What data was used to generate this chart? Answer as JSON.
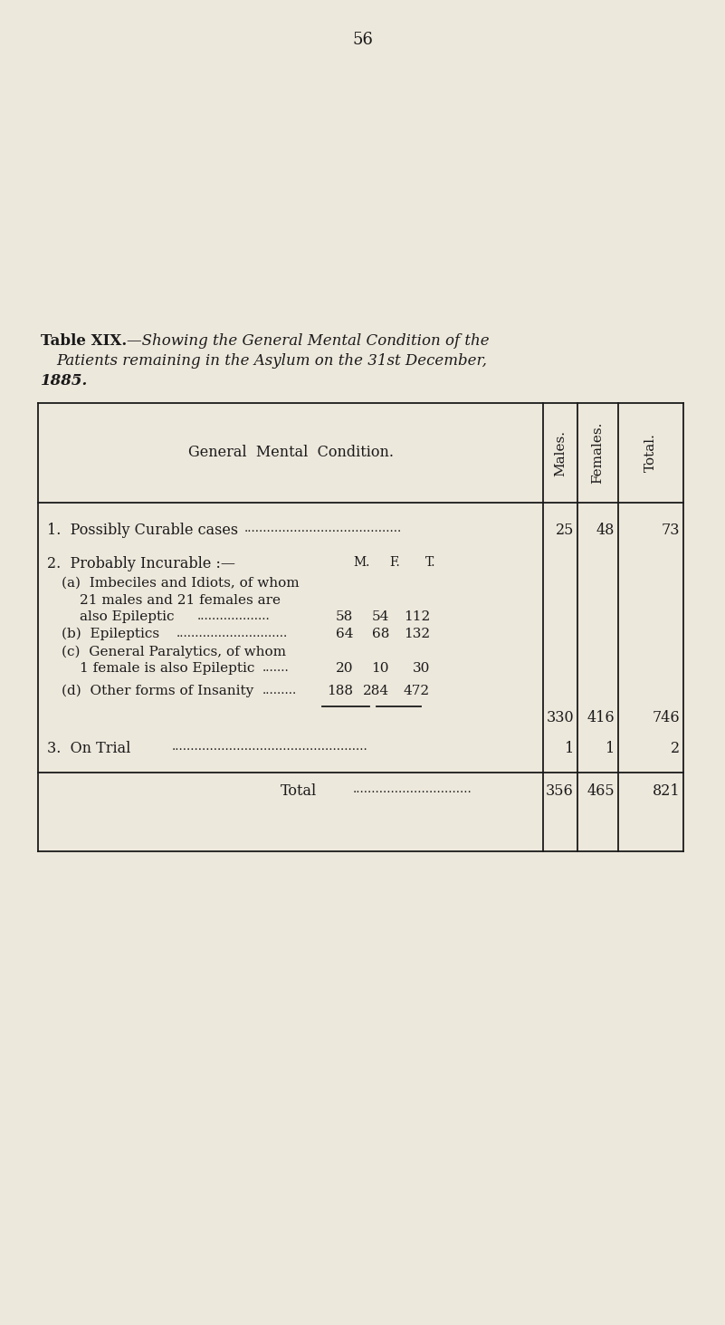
{
  "bg_color": "#ede8dc",
  "page_number": "56",
  "title_line1_normal": "Table XIX.",
  "title_line1_italic": "—Showing the General Mental Condition of the",
  "title_line2_italic": "Patients remaining in the Asylum on the 31st December,",
  "title_line3": "1885.",
  "col_header_left": "General  Mental  Condition.",
  "col_header_males": "Males.",
  "col_header_females": "Females.",
  "col_header_total": "Total.",
  "row1_label": "1.  Possibly Curable cases",
  "row1_dots": ".........................................",
  "row1_males": "25",
  "row1_females": "48",
  "row1_total": "73",
  "row2_label": "2.  Probably Incurable :—",
  "row2_sublabel_m": "M.",
  "row2_sublabel_f": "F.",
  "row2_sublabel_t": "T.",
  "row2a_label": "(a)  Imbeciles and Idiots, of whom",
  "row2a_line2": "21 males and 21 females are",
  "row2a_line3": "also Epileptic",
  "row2a_dots": "...................",
  "row2a_m": "58",
  "row2a_f": "54",
  "row2a_t": "112",
  "row2b_label": "(b)  Epileptics",
  "row2b_dots": ".............................",
  "row2b_m": "64",
  "row2b_f": "68",
  "row2b_t": "132",
  "row2c_label": "(c)  General Paralytics, of whom",
  "row2c_line2": "1 female is also Epileptic",
  "row2c_dots": ".......",
  "row2c_m": "20",
  "row2c_f": "10",
  "row2c_t": "30",
  "row2d_label": "(d)  Other forms of Insanity",
  "row2d_dots": ".........",
  "row2d_m": "188",
  "row2d_f": "284",
  "row2d_t": "472",
  "row2_subtotal_m": "330",
  "row2_subtotal_f": "416",
  "row2_subtotal_t": "746",
  "row3_label": "3.  On Trial",
  "row3_dots": "...................................................",
  "row3_males": "1",
  "row3_females": "1",
  "row3_total": "2",
  "total_label": "Total",
  "total_dots": "...............................",
  "total_males": "356",
  "total_females": "465",
  "total_total": "821",
  "fig_width": 8.01,
  "fig_height": 14.63,
  "dpi": 100
}
